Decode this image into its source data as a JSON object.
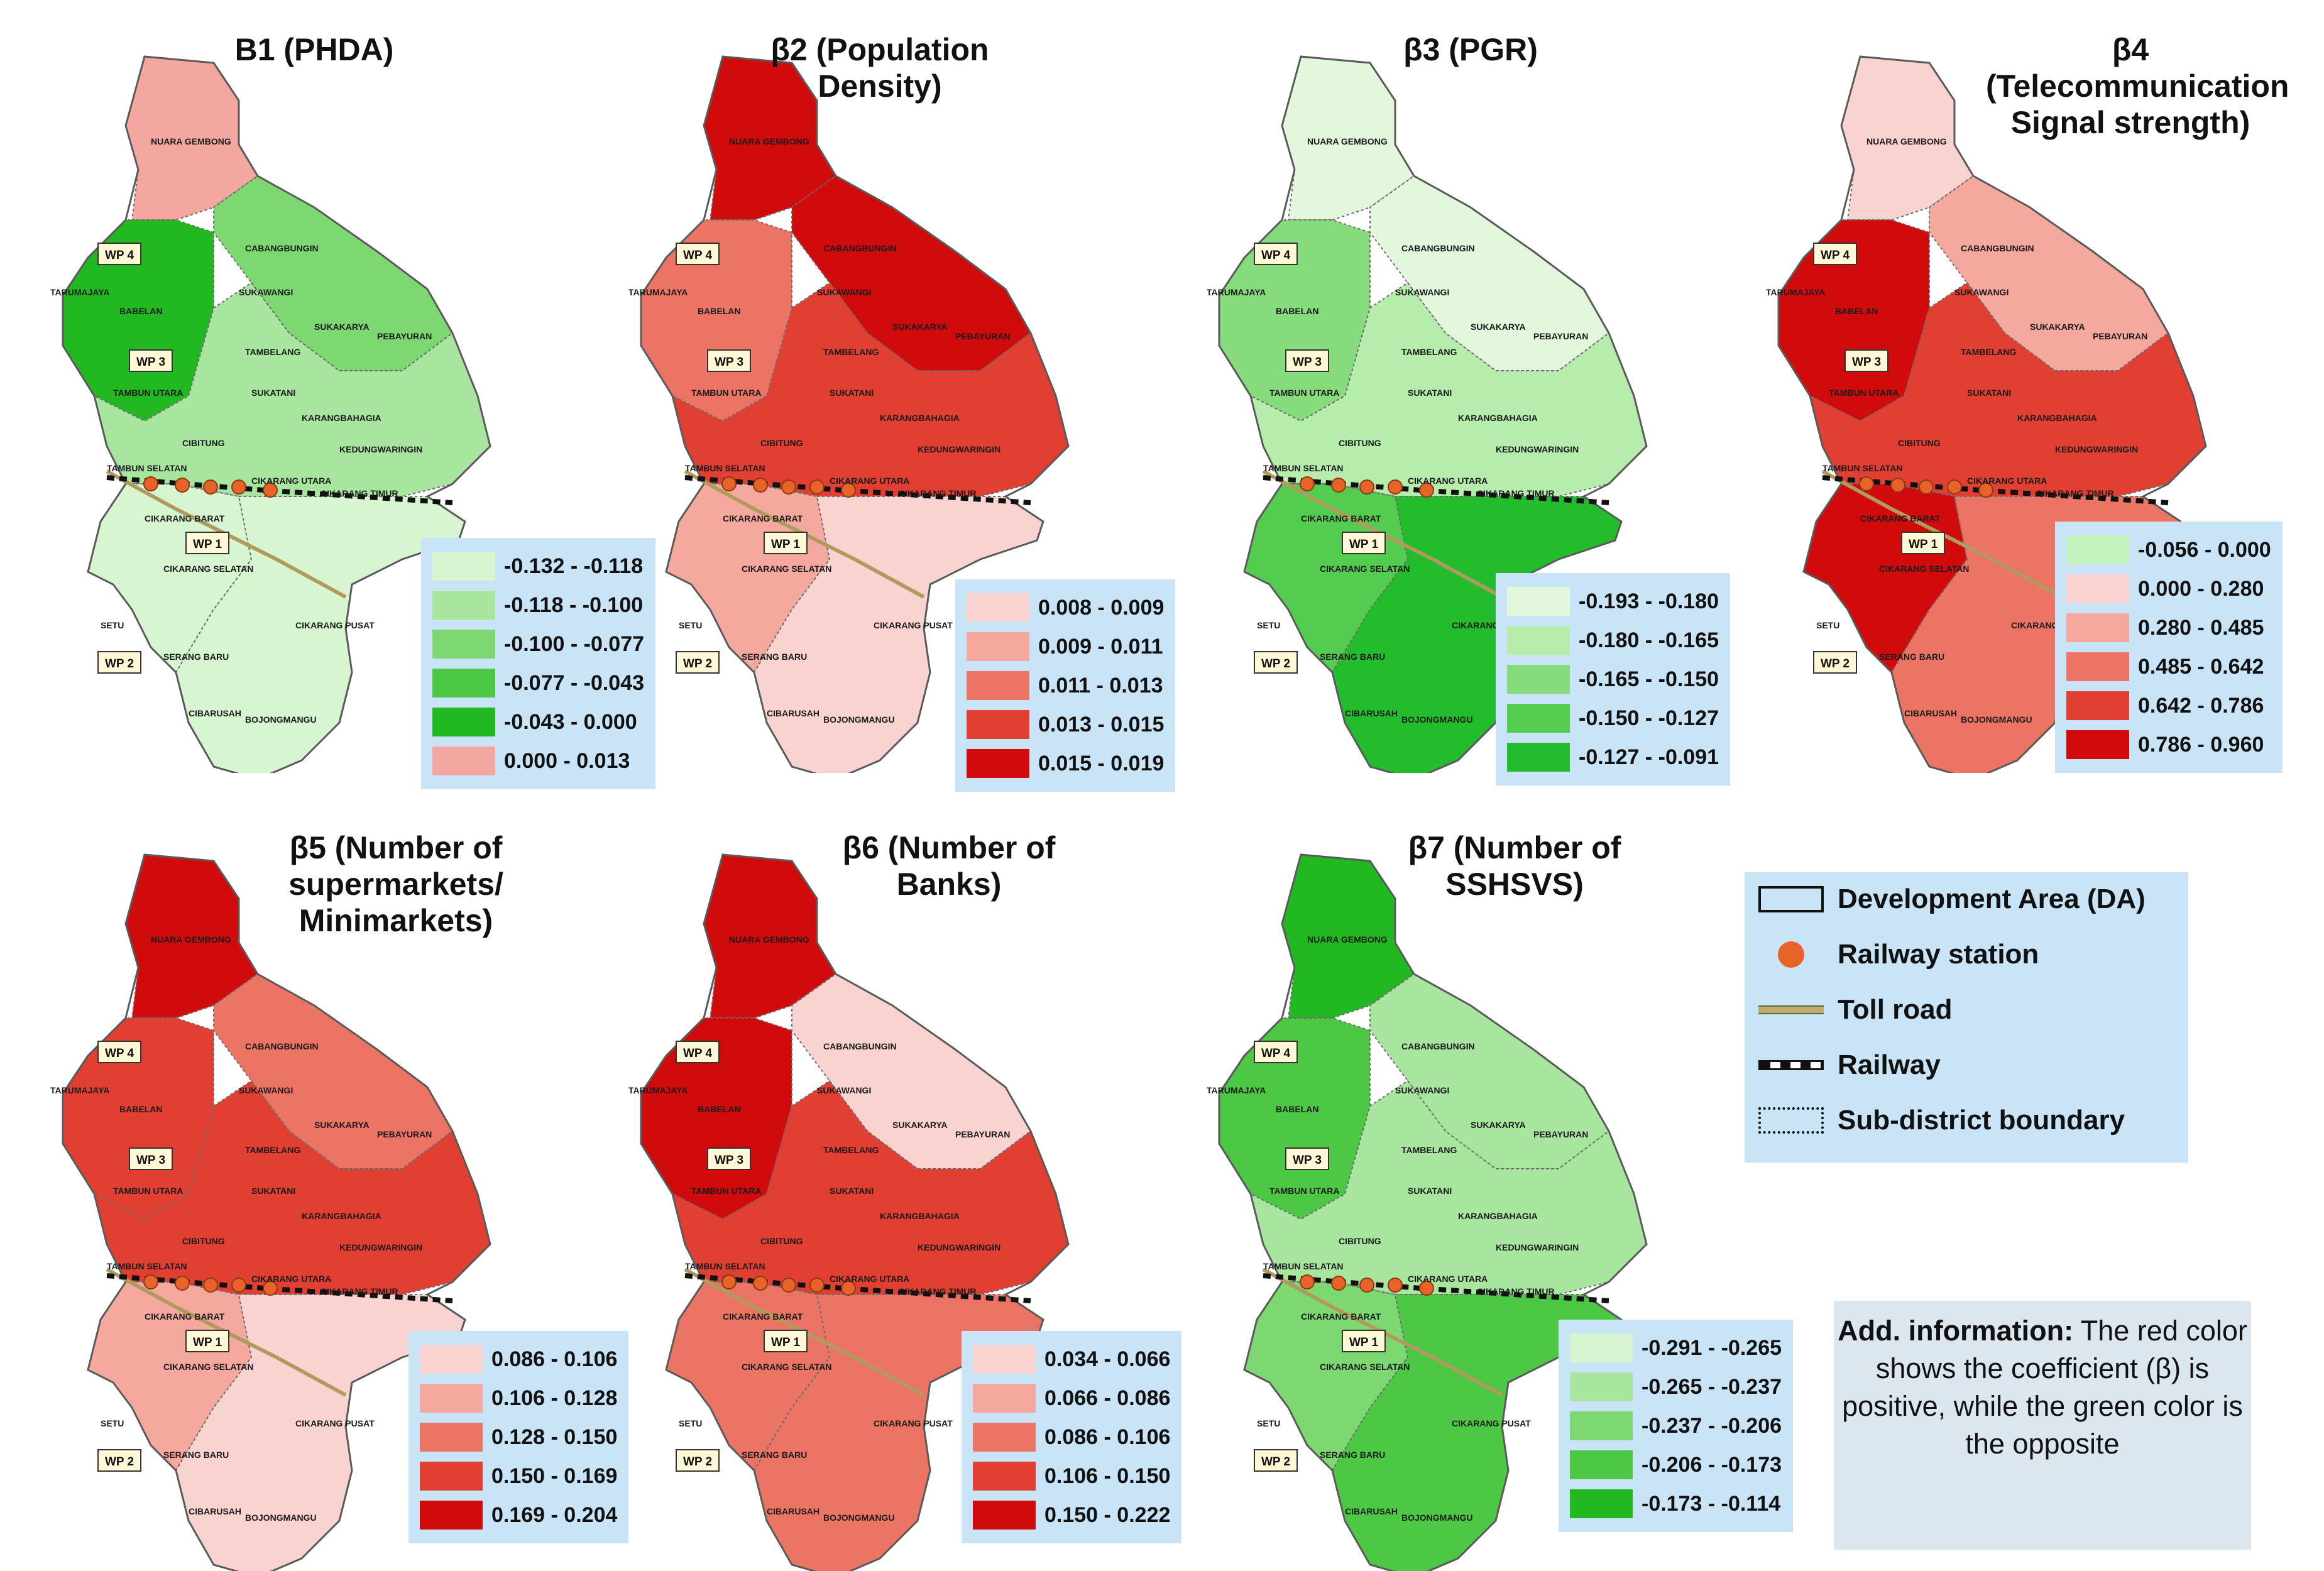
{
  "panels": [
    {
      "title_line1": "B1 (PHDA)",
      "title_line2": "",
      "title_line3": "",
      "legend": [
        {
          "range": "-0.132 - -0.118",
          "color": "#d6f5d0"
        },
        {
          "range": "-0.118 - -0.100",
          "color": "#a8e6a0"
        },
        {
          "range": "-0.100 - -0.077",
          "color": "#7dd872"
        },
        {
          "range": "-0.077 - -0.043",
          "color": "#4cc845"
        },
        {
          "range": "-0.043 - 0.000",
          "color": "#22b822"
        },
        {
          "range": "0.000 - 0.013",
          "color": "#f4a6a0"
        }
      ]
    },
    {
      "title_line1": "β2 (Population",
      "title_line2": "Density)",
      "title_line3": "",
      "legend": [
        {
          "range": "0.008 - 0.009",
          "color": "#f9d3d0"
        },
        {
          "range": "0.009 - 0.011",
          "color": "#f5a89e"
        },
        {
          "range": "0.011 - 0.013",
          "color": "#ec7465"
        },
        {
          "range": "0.013 - 0.015",
          "color": "#e03f32"
        },
        {
          "range": "0.015 - 0.019",
          "color": "#d10b0b"
        }
      ]
    },
    {
      "title_line1": "β3 (PGR)",
      "title_line2": "",
      "title_line3": "",
      "legend": [
        {
          "range": "-0.193 - -0.180",
          "color": "#e2f7dc"
        },
        {
          "range": "-0.180 - -0.165",
          "color": "#b6ecac"
        },
        {
          "range": "-0.165 - -0.150",
          "color": "#86dc7c"
        },
        {
          "range": "-0.150 - -0.127",
          "color": "#54cc50"
        },
        {
          "range": "-0.127 - -0.091",
          "color": "#22bc2c"
        }
      ]
    },
    {
      "title_line1": "β4",
      "title_line2": "(Telecommunication",
      "title_line3": "Signal strength)",
      "legend": [
        {
          "range": "-0.056 - 0.000",
          "color": "#c6f2c0"
        },
        {
          "range": "0.000 - 0.280",
          "color": "#f9d3d0"
        },
        {
          "range": "0.280 - 0.485",
          "color": "#f5a89e"
        },
        {
          "range": "0.485 - 0.642",
          "color": "#ec7465"
        },
        {
          "range": "0.642 - 0.786",
          "color": "#e03f32"
        },
        {
          "range": "0.786 - 0.960",
          "color": "#d10b0b"
        }
      ]
    },
    {
      "title_line1": "β5 (Number of",
      "title_line2": "supermarkets/",
      "title_line3": "Minimarkets)",
      "legend": [
        {
          "range": "0.086 - 0.106",
          "color": "#f9d3d0"
        },
        {
          "range": "0.106 - 0.128",
          "color": "#f5a89e"
        },
        {
          "range": "0.128 - 0.150",
          "color": "#ec7465"
        },
        {
          "range": "0.150 - 0.169",
          "color": "#e03f32"
        },
        {
          "range": "0.169 - 0.204",
          "color": "#d10b0b"
        }
      ]
    },
    {
      "title_line1": "β6 (Number of",
      "title_line2": "Banks)",
      "title_line3": "",
      "legend": [
        {
          "range": "0.034 - 0.066",
          "color": "#f9d3d0"
        },
        {
          "range": "0.066 - 0.086",
          "color": "#f5a89e"
        },
        {
          "range": "0.086 - 0.106",
          "color": "#ec7465"
        },
        {
          "range": "0.106 - 0.150",
          "color": "#e03f32"
        },
        {
          "range": "0.150 - 0.222",
          "color": "#d10b0b"
        }
      ]
    },
    {
      "title_line1": "β7 (Number of",
      "title_line2": "SSHSVS)",
      "title_line3": "",
      "legend": [
        {
          "range": "-0.291 - -0.265",
          "color": "#d6f5d0"
        },
        {
          "range": "-0.265 - -0.237",
          "color": "#a8e6a0"
        },
        {
          "range": "-0.237 - -0.206",
          "color": "#7dd872"
        },
        {
          "range": "-0.206 - -0.173",
          "color": "#4cc845"
        },
        {
          "range": "-0.173 - -0.114",
          "color": "#22b822"
        }
      ]
    }
  ],
  "map_labels": {
    "muara_gembong": "NUARA GEMBONG",
    "cabangbungin": "CABANGBUNGIN",
    "tarumajaya": "TARUMAJAYA",
    "babelan": "BABELAN",
    "sukawangi": "SUKAWANGI",
    "sukakarya": "SUKAKARYA",
    "tambelang": "TAMBELANG",
    "pebayuran": "PEBAYURAN",
    "tambun_utara": "TAMBUN UTARA",
    "sukatani": "SUKATANI",
    "karangbahagia": "KARANGBAHAGIA",
    "cibitung": "CIBITUNG",
    "kedungwaringin": "KEDUNGWARINGIN",
    "tambun_selatan": "TAMBUN SELATAN",
    "cikarang_utara": "CIKARANG UTARA",
    "cikarang_timur": "CIKARANG TIMUR",
    "cikarang_barat": "CIKARANG BARAT",
    "cikarang_selatan": "CIKARANG SELATAN",
    "setu": "SETU",
    "cikarang_pusat": "CIKARANG PUSAT",
    "serang_baru": "SERANG BARU",
    "cibarusah": "CIBARUSAH",
    "bojongmangu": "BOJONGMANGU",
    "wp1": "WP 1",
    "wp2": "WP 2",
    "wp3": "WP 3",
    "wp4": "WP 4"
  },
  "key": {
    "development_area": "Development Area (DA)",
    "railway_station": "Railway station",
    "toll_road": "Toll road",
    "railway": "Railway",
    "sub_district_boundary": "Sub-district boundary"
  },
  "info": {
    "heading": "Add. information:",
    "text": "The red color shows the coefficient (β) is positive, while the green color is the opposite"
  },
  "colors": {
    "station": "#e8632a",
    "legend_bg": "#c9e4f7",
    "info_bg": "#dbe6ef"
  }
}
